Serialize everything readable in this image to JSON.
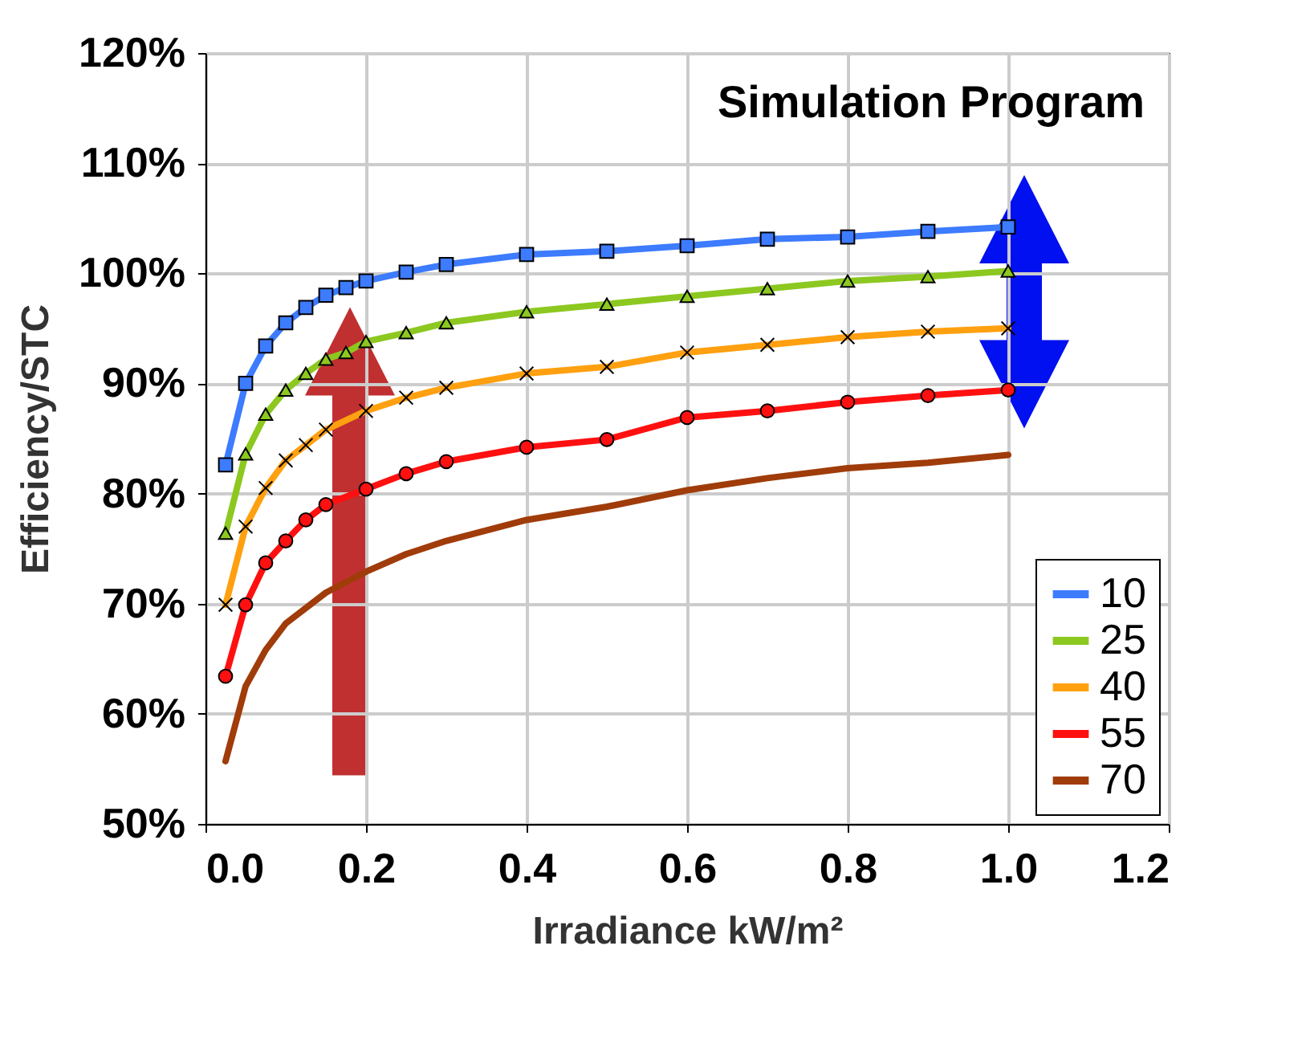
{
  "chart_data": {
    "type": "line",
    "xlabel": "Irradiance kW/m²",
    "ylabel": "Efficiency/STC",
    "annotations": [
      "Simulation Program"
    ],
    "xlim": [
      0,
      1.2
    ],
    "ylim": [
      50,
      120
    ],
    "xticks": [
      {
        "value": 0,
        "label": "0.0"
      },
      {
        "value": 0.2,
        "label": "0.2"
      },
      {
        "value": 0.4,
        "label": "0.4"
      },
      {
        "value": 0.6,
        "label": "0.6"
      },
      {
        "value": 0.8,
        "label": "0.8"
      },
      {
        "value": 1,
        "label": "1.0"
      },
      {
        "value": 1.2,
        "label": "1.2"
      }
    ],
    "yticks": [
      {
        "value": 50,
        "label": "50%"
      },
      {
        "value": 60,
        "label": "60%"
      },
      {
        "value": 70,
        "label": "70%"
      },
      {
        "value": 80,
        "label": "80%"
      },
      {
        "value": 90,
        "label": "90%"
      },
      {
        "value": 100,
        "label": "100%"
      },
      {
        "value": 110,
        "label": "110%"
      },
      {
        "value": 120,
        "label": "120%"
      }
    ],
    "grid": true,
    "legend": "bottom right",
    "series": [
      {
        "name": "10",
        "color": "#3d7bff",
        "marker": "square",
        "x": [
          0.025,
          0.05,
          0.075,
          0.1,
          0.125,
          0.15,
          0.175,
          0.2,
          0.25,
          0.3,
          0.4,
          0.5,
          0.6,
          0.7,
          0.8,
          0.9,
          1.0
        ],
        "values": [
          82.6,
          90.0,
          93.4,
          95.5,
          96.9,
          98.0,
          98.7,
          99.3,
          100.1,
          100.8,
          101.7,
          102.0,
          102.5,
          103.1,
          103.3,
          103.8,
          104.2
        ]
      },
      {
        "name": "25",
        "color": "#8cc820",
        "marker": "triangle",
        "x": [
          0.025,
          0.05,
          0.075,
          0.1,
          0.125,
          0.15,
          0.175,
          0.2,
          0.25,
          0.3,
          0.4,
          0.5,
          0.6,
          0.7,
          0.8,
          0.9,
          1.0
        ],
        "values": [
          76.4,
          83.6,
          87.2,
          89.4,
          90.9,
          92.2,
          92.8,
          93.8,
          94.6,
          95.5,
          96.5,
          97.2,
          97.9,
          98.6,
          99.3,
          99.7,
          100.2
        ]
      },
      {
        "name": "40",
        "color": "#ffa010",
        "marker": "cross",
        "x": [
          0.025,
          0.05,
          0.075,
          0.1,
          0.125,
          0.15,
          0.2,
          0.25,
          0.3,
          0.4,
          0.5,
          0.6,
          0.7,
          0.8,
          0.9,
          1.0
        ],
        "values": [
          69.9,
          77.0,
          80.5,
          83.0,
          84.4,
          85.8,
          87.5,
          88.7,
          89.6,
          90.9,
          91.5,
          92.8,
          93.5,
          94.2,
          94.7,
          95.0
        ]
      },
      {
        "name": "55",
        "color": "#ff1010",
        "marker": "circle",
        "x": [
          0.025,
          0.05,
          0.075,
          0.1,
          0.125,
          0.15,
          0.2,
          0.25,
          0.3,
          0.4,
          0.5,
          0.6,
          0.7,
          0.8,
          0.9,
          1.0
        ],
        "values": [
          63.4,
          69.9,
          73.7,
          75.7,
          77.6,
          79.0,
          80.4,
          81.8,
          82.9,
          84.2,
          84.9,
          86.9,
          87.5,
          88.3,
          88.9,
          89.4
        ]
      },
      {
        "name": "70",
        "color": "#a03c0a",
        "marker": "none",
        "x": [
          0.025,
          0.05,
          0.075,
          0.1,
          0.15,
          0.2,
          0.25,
          0.3,
          0.4,
          0.5,
          0.6,
          0.7,
          0.8,
          0.9,
          1.0
        ],
        "values": [
          55.7,
          62.5,
          65.8,
          68.2,
          71.0,
          72.9,
          74.5,
          75.7,
          77.6,
          78.8,
          80.3,
          81.4,
          82.3,
          82.8,
          83.5
        ]
      }
    ]
  }
}
